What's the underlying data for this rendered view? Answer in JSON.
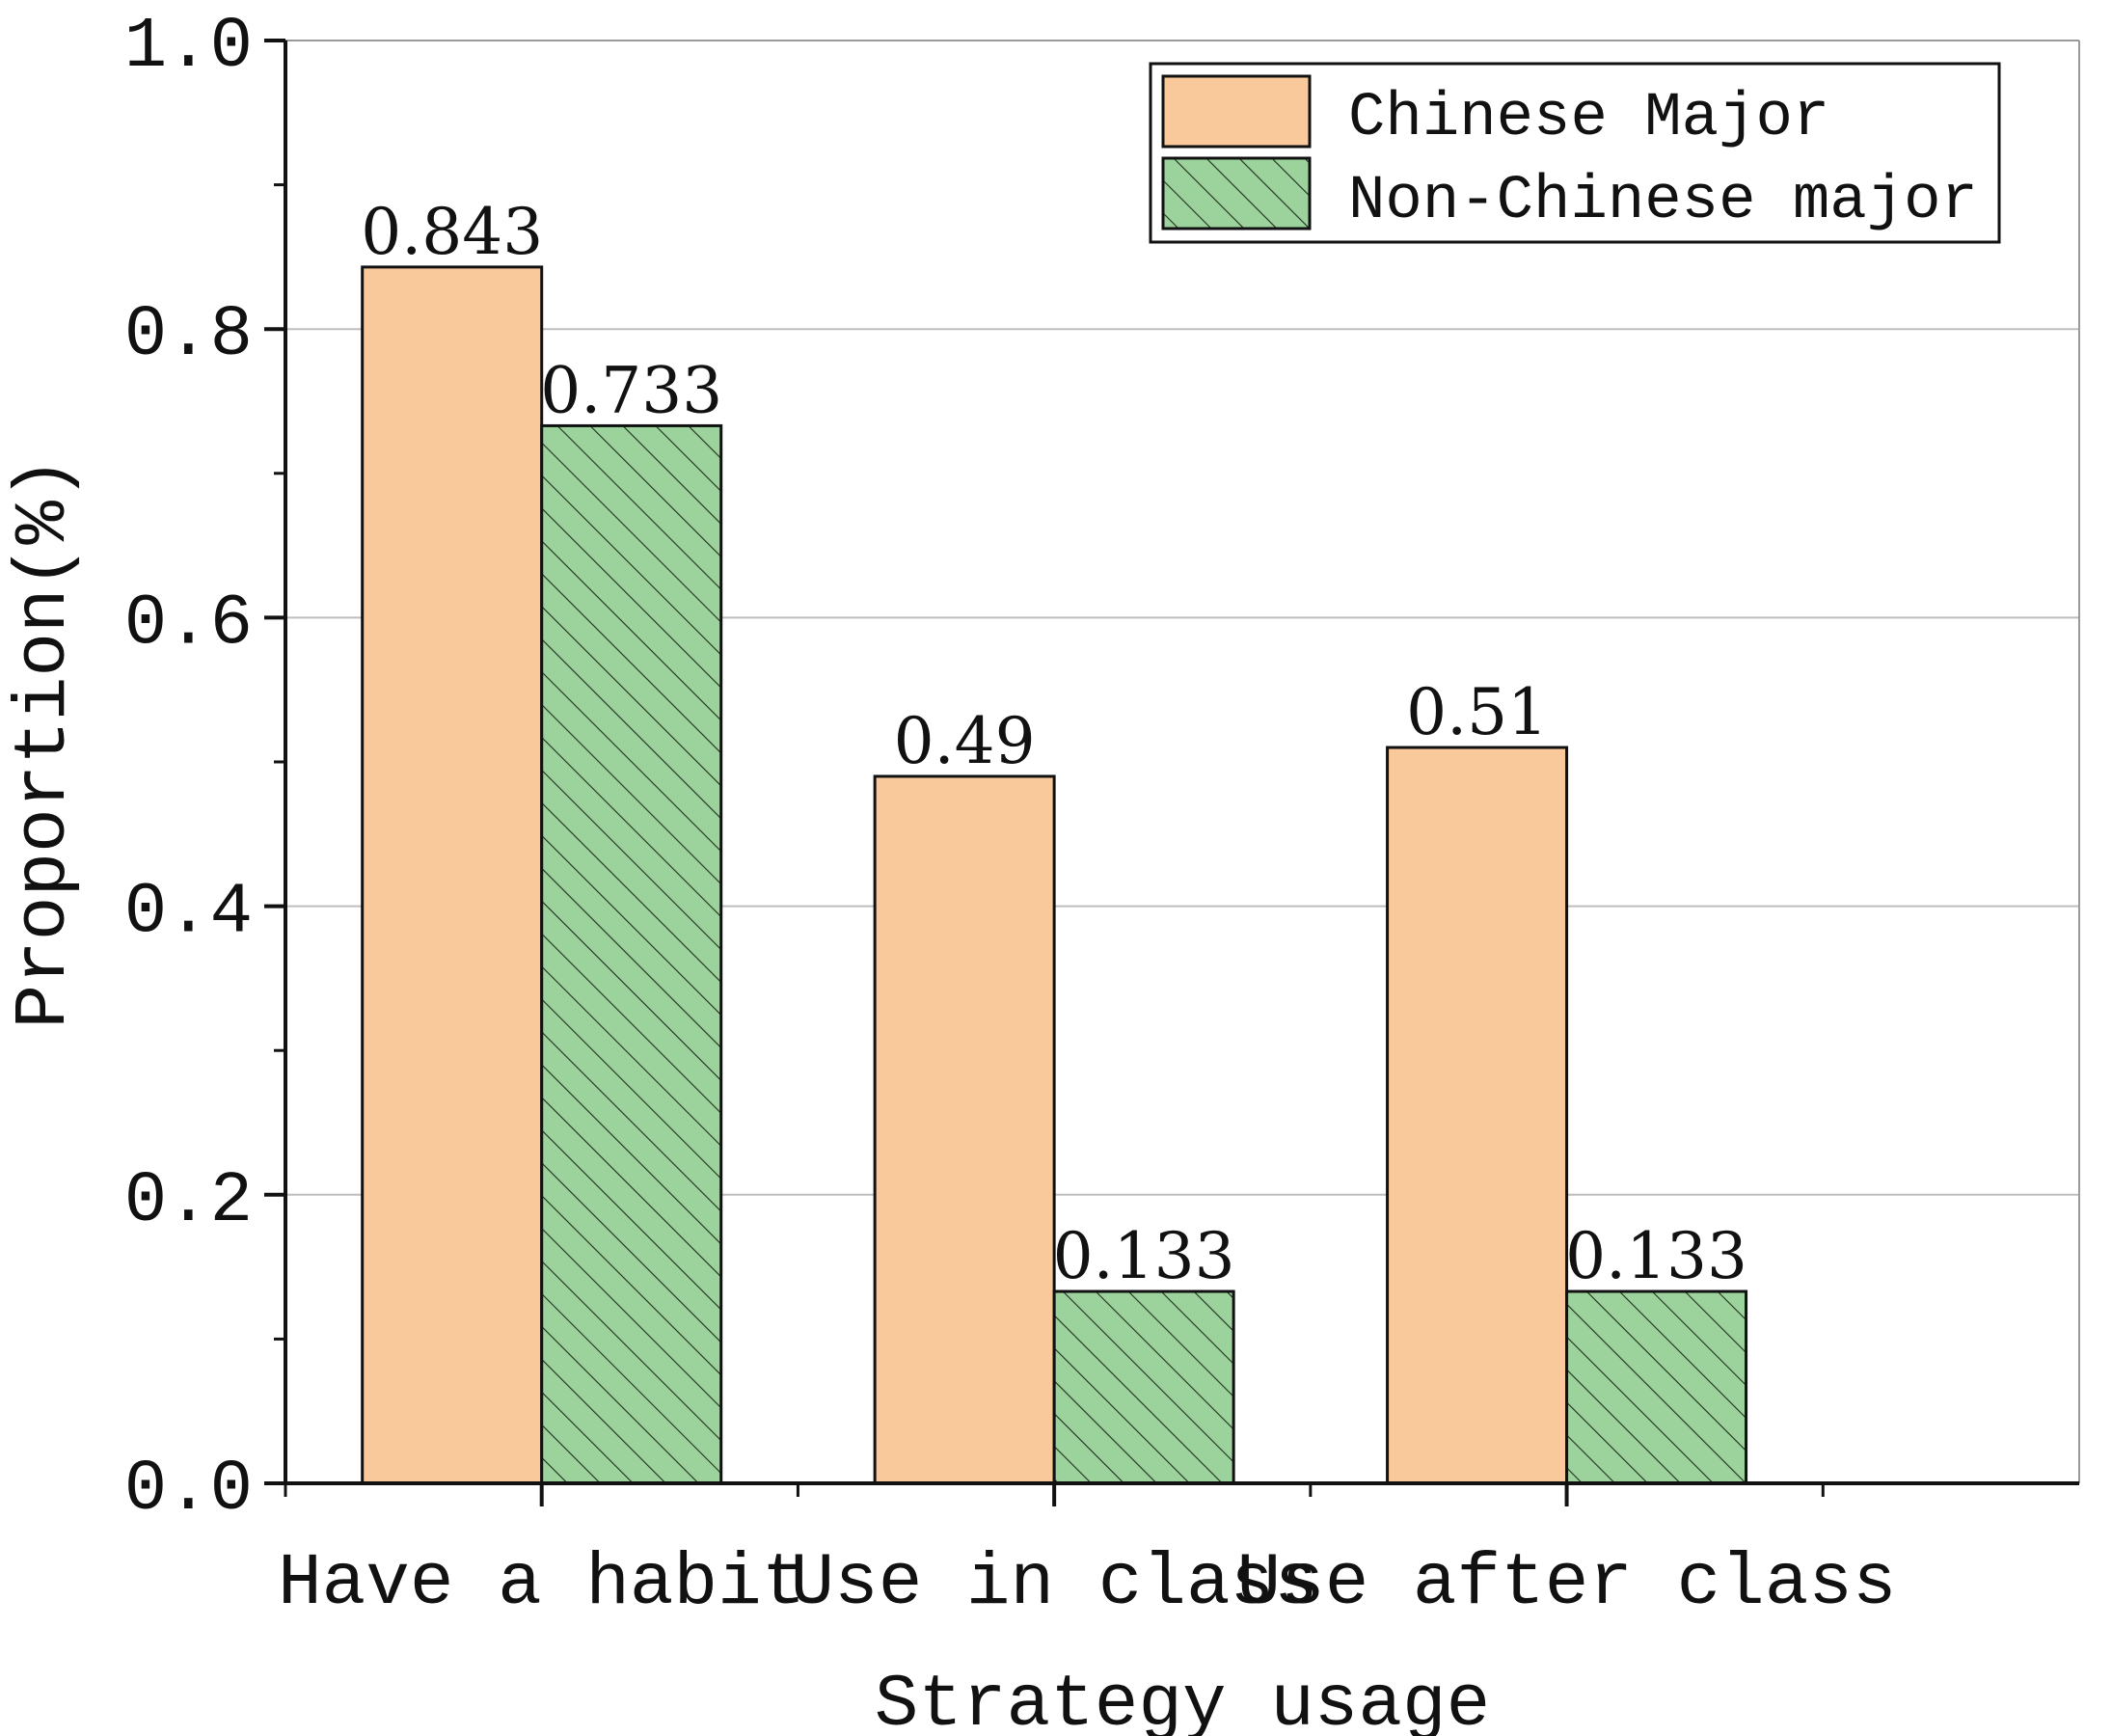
{
  "chart_data": {
    "type": "bar",
    "title": "",
    "xlabel": "Strategy usage",
    "ylabel": "Proportion(%)",
    "ylim": [
      0,
      1.0
    ],
    "yticks": [
      "0.0",
      "0.2",
      "0.4",
      "0.6",
      "0.8",
      "1.0"
    ],
    "categories": [
      "Have a habit",
      "Use in class",
      "Use after class"
    ],
    "series": [
      {
        "name": "Chinese Major",
        "values": [
          0.843,
          0.49,
          0.51
        ],
        "labels": [
          "0.843",
          "0.49",
          "0.51"
        ],
        "color": "#f9c89b",
        "pattern": "solid"
      },
      {
        "name": "Non-Chinese major",
        "values": [
          0.733,
          0.133,
          0.133
        ],
        "labels": [
          "0.733",
          "0.133",
          "0.133"
        ],
        "color": "#9cd29b",
        "pattern": "diagonal-hatch"
      }
    ],
    "grid": true,
    "legend": "top-right",
    "data_labels": true
  }
}
